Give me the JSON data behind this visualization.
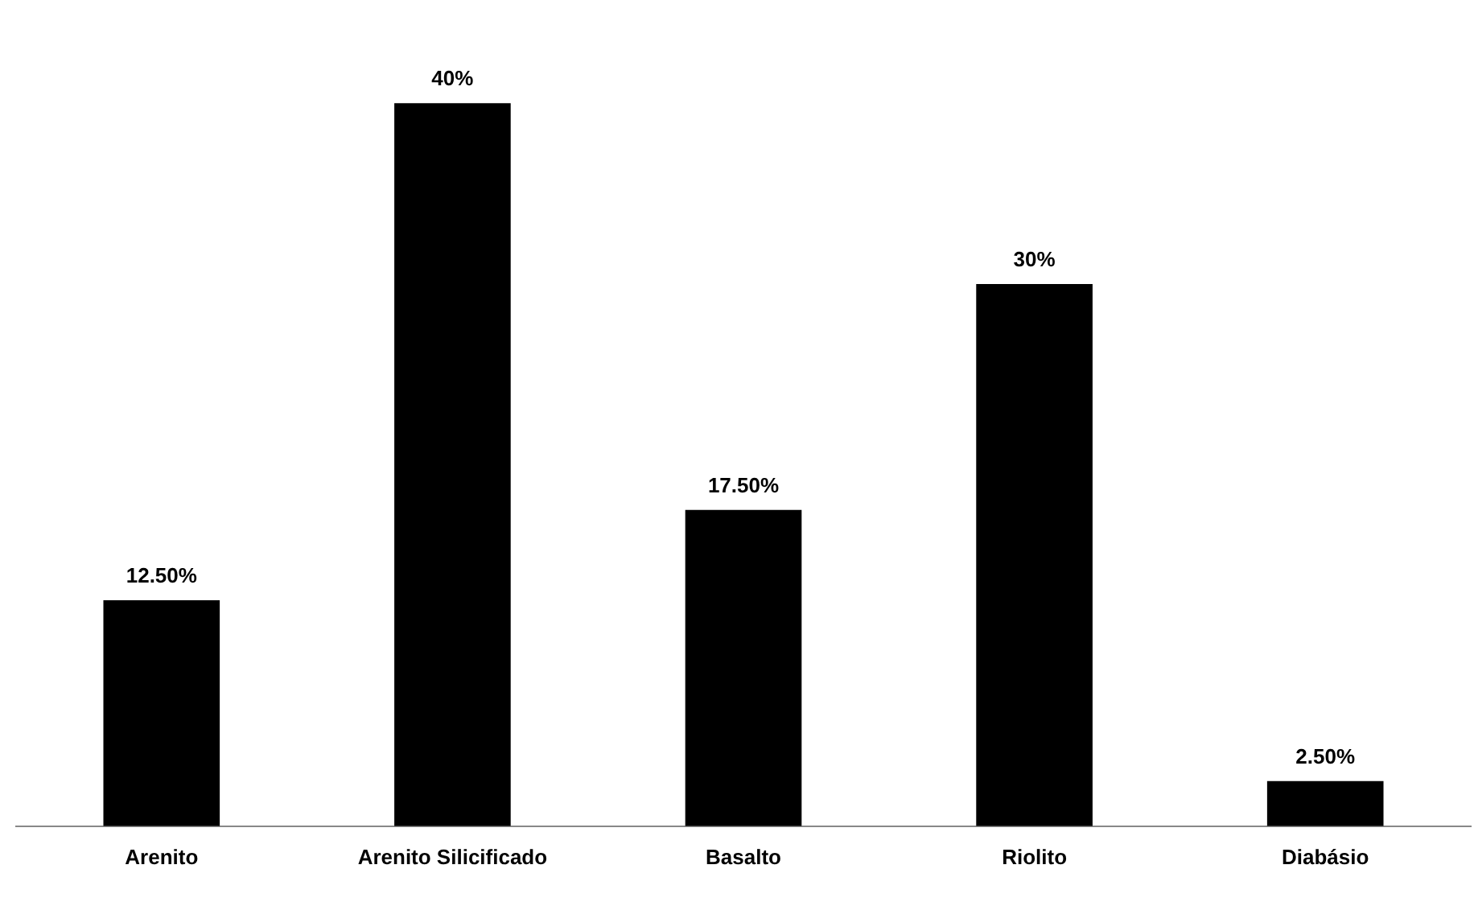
{
  "chart_data": {
    "type": "bar",
    "categories": [
      "Arenito",
      "Arenito Silicificado",
      "Basalto",
      "Riolito",
      "Diabásio"
    ],
    "values": [
      12.5,
      40,
      17.5,
      30,
      2.5
    ],
    "value_labels": [
      "12.50%",
      "40%",
      "17.50%",
      "30%",
      "2.50%"
    ],
    "color": "#000000",
    "grid": false,
    "legend": false,
    "tick_labels": "x"
  }
}
